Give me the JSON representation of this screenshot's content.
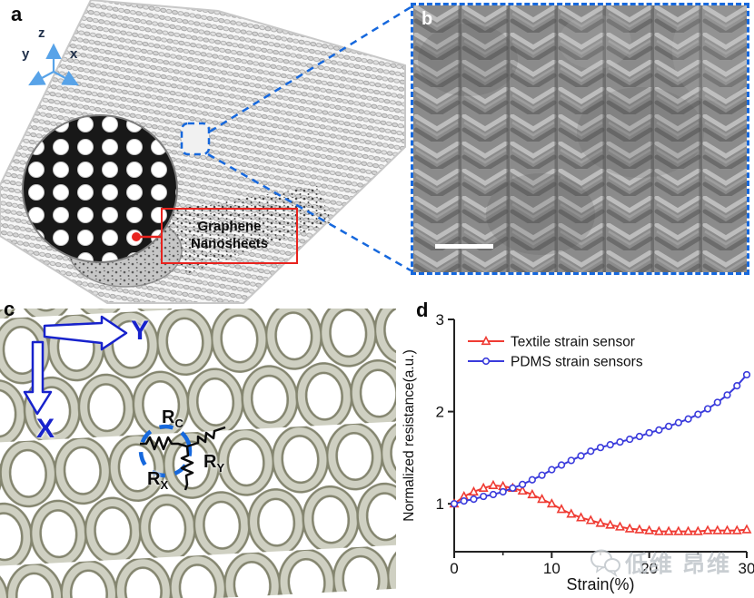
{
  "figure": {
    "panels": {
      "a": {
        "label": "a",
        "axis_labels": {
          "z": "z",
          "y": "y",
          "x": "x"
        },
        "annotation": {
          "line1": "Graphene",
          "line2": "Nanosheets"
        }
      },
      "b": {
        "label": "b"
      },
      "c": {
        "label": "c",
        "direction_labels": {
          "horizontal": "Y",
          "vertical": "X"
        },
        "resistors": {
          "rc": {
            "base": "R",
            "sub": "C"
          },
          "ry": {
            "base": "R",
            "sub": "Y"
          },
          "rx": {
            "base": "R",
            "sub": "X"
          }
        }
      },
      "d": {
        "label": "d"
      }
    }
  },
  "chart_data": {
    "type": "line",
    "title": "",
    "xlabel": "Strain(%)",
    "ylabel": "Normalized resistance(a.u.)",
    "xlim": [
      0,
      30
    ],
    "ylim": [
      0.48,
      3
    ],
    "xticks": [
      0,
      10,
      20,
      30
    ],
    "xminor": [
      5,
      15,
      25
    ],
    "yticks": [
      1,
      2,
      3
    ],
    "grid": false,
    "legend_position": "top-left",
    "x": [
      0,
      1,
      2,
      3,
      4,
      5,
      6,
      7,
      8,
      9,
      10,
      11,
      12,
      13,
      14,
      15,
      16,
      17,
      18,
      19,
      20,
      21,
      22,
      23,
      24,
      25,
      26,
      27,
      28,
      29,
      30
    ],
    "series": [
      {
        "name": "Textile strain sensor",
        "color": "#ef3b33",
        "marker": "triangle",
        "values": [
          1.0,
          1.08,
          1.13,
          1.17,
          1.2,
          1.19,
          1.17,
          1.14,
          1.1,
          1.05,
          1.0,
          0.94,
          0.89,
          0.85,
          0.82,
          0.79,
          0.77,
          0.75,
          0.73,
          0.72,
          0.71,
          0.7,
          0.7,
          0.7,
          0.7,
          0.7,
          0.71,
          0.71,
          0.71,
          0.71,
          0.72
        ]
      },
      {
        "name": "PDMS strain sensors",
        "color": "#3a3bdc",
        "marker": "circle",
        "values": [
          1.0,
          1.03,
          1.05,
          1.08,
          1.1,
          1.13,
          1.17,
          1.21,
          1.26,
          1.31,
          1.37,
          1.42,
          1.47,
          1.52,
          1.57,
          1.61,
          1.64,
          1.67,
          1.7,
          1.73,
          1.77,
          1.8,
          1.84,
          1.88,
          1.92,
          1.97,
          2.03,
          2.1,
          2.18,
          2.28,
          2.4
        ]
      }
    ]
  },
  "watermark": {
    "text": "低维 昂维"
  },
  "colors": {
    "highlight_blue": "#1668dd",
    "axis_arrow_blue": "#58a3e8",
    "annotation_red": "#e8231e",
    "textile_red": "#ef3b33",
    "pdms_blue": "#3a3bdc",
    "fabric_beige": "#c9cabc",
    "watermark_gray": "#bcc2c8"
  }
}
